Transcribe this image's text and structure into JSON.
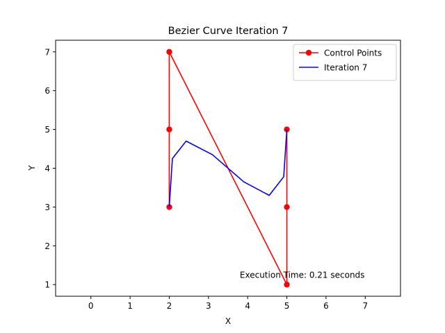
{
  "chart_data": {
    "type": "line",
    "title": "Bezier Curve Iteration 7",
    "xlabel": "X",
    "ylabel": "Y",
    "xlim": [
      -0.9,
      7.9
    ],
    "ylim": [
      0.7,
      7.3
    ],
    "xticks": [
      0,
      1,
      2,
      3,
      4,
      5,
      6,
      7
    ],
    "yticks": [
      1,
      2,
      3,
      4,
      5,
      6,
      7
    ],
    "grid": false,
    "legend_position": "top-right",
    "series": [
      {
        "name": "Control Points",
        "color": "#ff0000",
        "marker": "circle",
        "x": [
          2,
          2,
          2,
          5,
          5,
          5
        ],
        "y": [
          3,
          5,
          7,
          1,
          3,
          5
        ]
      },
      {
        "name": "Iteration 7",
        "color": "#0000ff",
        "marker": "none",
        "x": [
          2.0,
          2.08,
          2.43,
          3.1,
          3.9,
          4.55,
          4.92,
          5.0
        ],
        "y": [
          3.0,
          4.25,
          4.7,
          4.35,
          3.65,
          3.3,
          3.78,
          5.0
        ]
      }
    ],
    "annotations": [
      {
        "text": "Execution Time: 0.21 seconds",
        "x": 3.8,
        "y": 1.17
      }
    ]
  }
}
